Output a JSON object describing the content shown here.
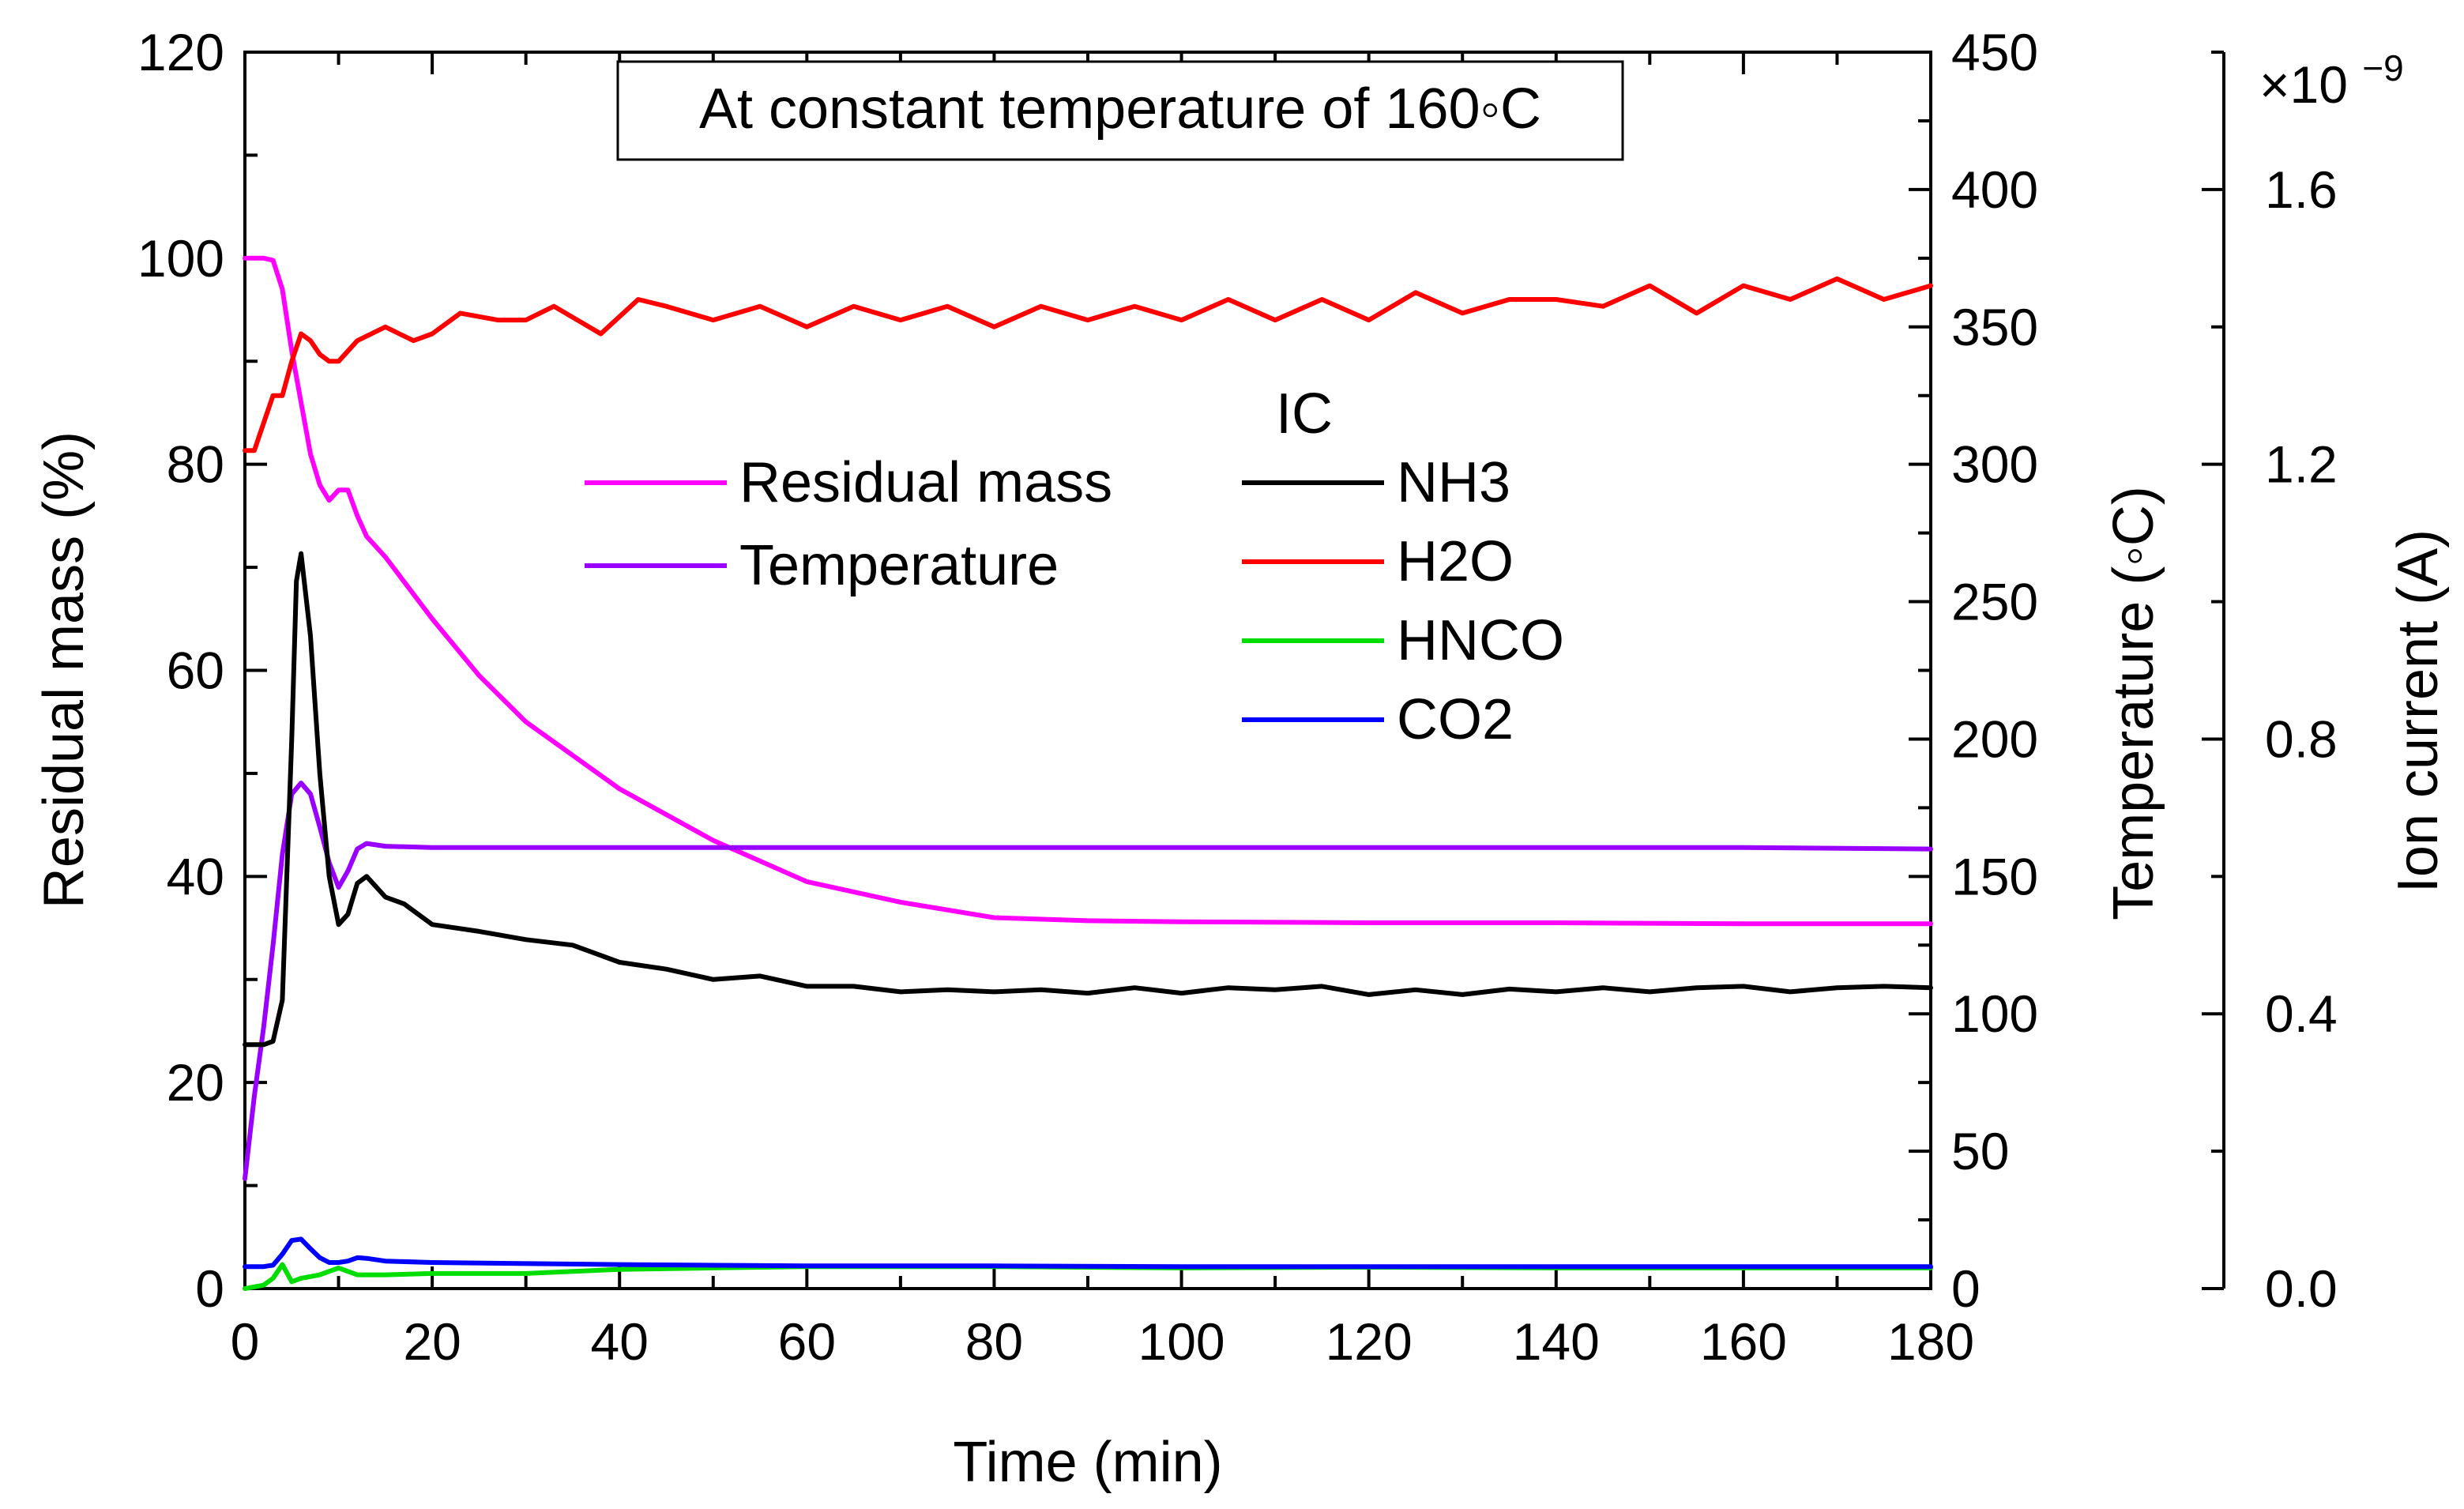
{
  "chart_data": {
    "type": "line",
    "title": "At constant temperature of 160◦C",
    "xlabel": "Time (min)",
    "xlim": [
      0,
      180
    ],
    "xticks": [
      0,
      20,
      40,
      60,
      80,
      100,
      120,
      140,
      160,
      180
    ],
    "axes": {
      "mass": {
        "label": "Residual mass (%)",
        "lim": [
          0,
          120
        ],
        "ticks": [
          0,
          20,
          40,
          60,
          80,
          100,
          120
        ]
      },
      "temperature": {
        "label": "Temperature (◦C)",
        "lim": [
          0,
          450
        ],
        "ticks": [
          0,
          50,
          100,
          150,
          200,
          250,
          300,
          350,
          400,
          450
        ]
      },
      "ion_current": {
        "label": "Ion current (A)",
        "lim": [
          0,
          1.8
        ],
        "ticks": [
          "0.0",
          "0.4",
          "0.8",
          "1.2",
          "1.6"
        ],
        "exponent_base": "×10",
        "exponent_power": "−9"
      }
    },
    "legend_group_title": "IC",
    "series": [
      {
        "name": "Residual mass",
        "axis": "mass",
        "color": "#ff00ff",
        "x": [
          0,
          2,
          3,
          4,
          5,
          6,
          7,
          8,
          9,
          10,
          11,
          12,
          13,
          15,
          20,
          25,
          30,
          40,
          50,
          60,
          70,
          80,
          90,
          100,
          120,
          140,
          160,
          180
        ],
        "y": [
          100,
          100,
          99.8,
          97,
          91,
          86,
          81,
          78,
          76.5,
          77.5,
          77.5,
          75,
          73,
          71,
          65,
          59.5,
          55,
          48.5,
          43.5,
          39.5,
          37.5,
          36,
          35.7,
          35.6,
          35.5,
          35.5,
          35.4,
          35.4
        ]
      },
      {
        "name": "Temperature",
        "axis": "temperature",
        "color": "#9900ff",
        "x": [
          0,
          1,
          2,
          3,
          4,
          5,
          6,
          7,
          8,
          9,
          10,
          11,
          12,
          13,
          15,
          20,
          40,
          60,
          80,
          100,
          120,
          140,
          160,
          180
        ],
        "y": [
          40,
          70,
          95,
          125,
          158,
          180,
          184,
          180,
          168,
          155,
          146,
          152,
          160,
          162,
          161,
          160.5,
          160.5,
          160.5,
          160.5,
          160.5,
          160.5,
          160.5,
          160.5,
          160
        ]
      },
      {
        "name": "NH3",
        "axis": "ion_current",
        "color": "#000000",
        "x": [
          0,
          2,
          3,
          4,
          5,
          5.5,
          6,
          7,
          8,
          9,
          10,
          11,
          12,
          13,
          14,
          15,
          17,
          20,
          25,
          30,
          35,
          40,
          45,
          50,
          55,
          60,
          65,
          70,
          75,
          80,
          85,
          90,
          95,
          100,
          105,
          110,
          115,
          120,
          125,
          130,
          135,
          140,
          145,
          150,
          155,
          160,
          165,
          170,
          175,
          180
        ],
        "y": [
          0.355,
          0.355,
          0.36,
          0.42,
          0.8,
          1.03,
          1.07,
          0.95,
          0.75,
          0.6,
          0.53,
          0.545,
          0.59,
          0.6,
          0.585,
          0.57,
          0.56,
          0.53,
          0.52,
          0.508,
          0.5,
          0.475,
          0.465,
          0.45,
          0.455,
          0.44,
          0.44,
          0.432,
          0.435,
          0.432,
          0.435,
          0.43,
          0.438,
          0.43,
          0.438,
          0.435,
          0.44,
          0.428,
          0.435,
          0.428,
          0.436,
          0.432,
          0.438,
          0.432,
          0.438,
          0.44,
          0.432,
          0.438,
          0.44,
          0.438
        ]
      },
      {
        "name": "H2O",
        "axis": "ion_current",
        "color": "#ff0000",
        "x": [
          0,
          1,
          2,
          3,
          4,
          5,
          6,
          7,
          8,
          9,
          10,
          12,
          15,
          18,
          20,
          23,
          27,
          30,
          33,
          38,
          42,
          45,
          50,
          55,
          60,
          65,
          70,
          75,
          80,
          85,
          90,
          95,
          100,
          105,
          110,
          115,
          120,
          125,
          130,
          135,
          140,
          145,
          150,
          155,
          160,
          165,
          170,
          175,
          180
        ],
        "y": [
          1.22,
          1.22,
          1.26,
          1.3,
          1.3,
          1.35,
          1.39,
          1.38,
          1.36,
          1.35,
          1.35,
          1.38,
          1.4,
          1.38,
          1.39,
          1.42,
          1.41,
          1.41,
          1.43,
          1.39,
          1.44,
          1.43,
          1.41,
          1.43,
          1.4,
          1.43,
          1.41,
          1.43,
          1.4,
          1.43,
          1.41,
          1.43,
          1.41,
          1.44,
          1.41,
          1.44,
          1.41,
          1.45,
          1.42,
          1.44,
          1.44,
          1.43,
          1.46,
          1.42,
          1.46,
          1.44,
          1.47,
          1.44,
          1.46
        ]
      },
      {
        "name": "HNCO",
        "axis": "ion_current",
        "color": "#00dd00",
        "x": [
          0,
          2,
          3,
          4,
          5,
          6,
          8,
          10,
          12,
          15,
          20,
          30,
          40,
          50,
          60,
          80,
          100,
          120,
          140,
          160,
          180
        ],
        "y": [
          0.0,
          0.005,
          0.015,
          0.035,
          0.01,
          0.015,
          0.02,
          0.03,
          0.02,
          0.02,
          0.022,
          0.022,
          0.028,
          0.03,
          0.032,
          0.032,
          0.03,
          0.031,
          0.03,
          0.03,
          0.03
        ]
      },
      {
        "name": "CO2",
        "axis": "ion_current",
        "color": "#0000ff",
        "x": [
          0,
          2,
          3,
          4,
          5,
          6,
          7,
          8,
          9,
          10,
          11,
          12,
          13,
          15,
          20,
          40,
          60,
          80,
          100,
          120,
          140,
          160,
          180
        ],
        "y": [
          0.032,
          0.032,
          0.034,
          0.05,
          0.07,
          0.072,
          0.058,
          0.045,
          0.038,
          0.038,
          0.04,
          0.045,
          0.044,
          0.04,
          0.038,
          0.035,
          0.033,
          0.033,
          0.032,
          0.032,
          0.032,
          0.032,
          0.032
        ]
      }
    ]
  }
}
